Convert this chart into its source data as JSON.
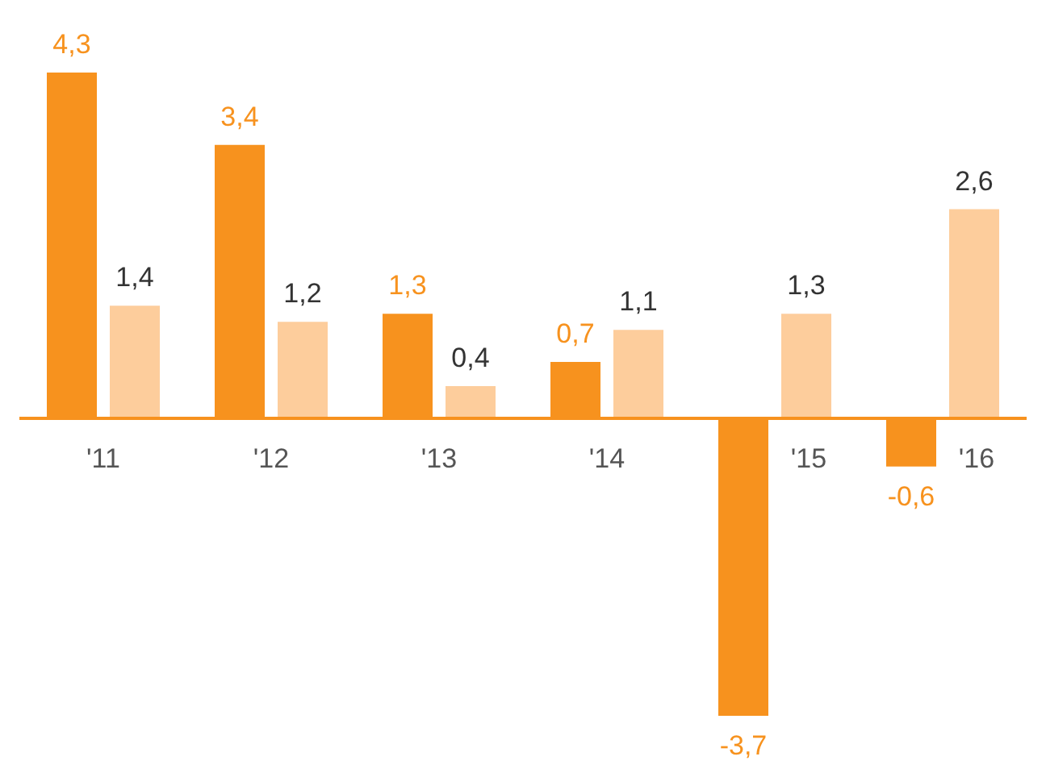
{
  "chart_data": {
    "type": "bar",
    "categories": [
      "'11",
      "'12",
      "'13",
      "'14",
      "'15",
      "'16"
    ],
    "series": [
      {
        "color": "#f7921e",
        "values": [
          4.3,
          3.4,
          1.3,
          0.7,
          -3.7,
          -0.6
        ],
        "value_labels": [
          "4,3",
          "3,4",
          "1,3",
          "0,7",
          "-3,7",
          "-0,6"
        ]
      },
      {
        "color": "#fdcd9c",
        "values": [
          1.4,
          1.2,
          0.4,
          1.1,
          1.3,
          2.6
        ],
        "value_labels": [
          "1,4",
          "1,2",
          "0,4",
          "1,1",
          "1,3",
          "2,6"
        ]
      }
    ],
    "grid": false,
    "legend": false
  }
}
